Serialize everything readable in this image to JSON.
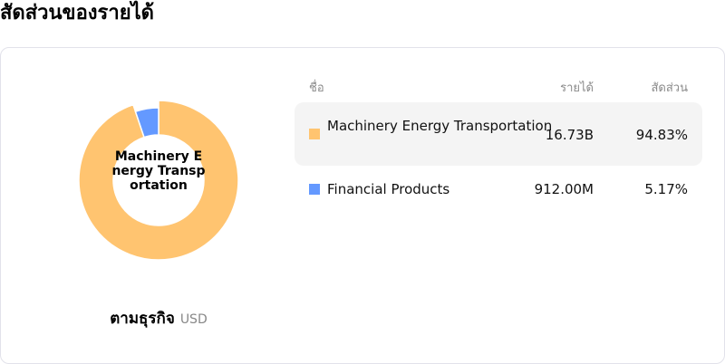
{
  "title": "สัดส่วนของรายได้",
  "chart_data": {
    "type": "pie",
    "variant": "donut",
    "center_label": "Machinery Energy Transportation",
    "slices": [
      {
        "name": "Machinery Energy Transportation",
        "revenue": "16.73B",
        "share": 94.83,
        "share_label": "94.83%",
        "color": "#FFC470"
      },
      {
        "name": "Financial Products",
        "revenue": "912.00M",
        "share": 5.17,
        "share_label": "5.17%",
        "color": "#6499FF"
      }
    ]
  },
  "footer": {
    "group_label": "ตามธุรกิจ",
    "currency": "USD"
  },
  "table": {
    "headers": {
      "name": "ชื่อ",
      "revenue": "รายได้",
      "share": "สัดส่วน"
    }
  }
}
